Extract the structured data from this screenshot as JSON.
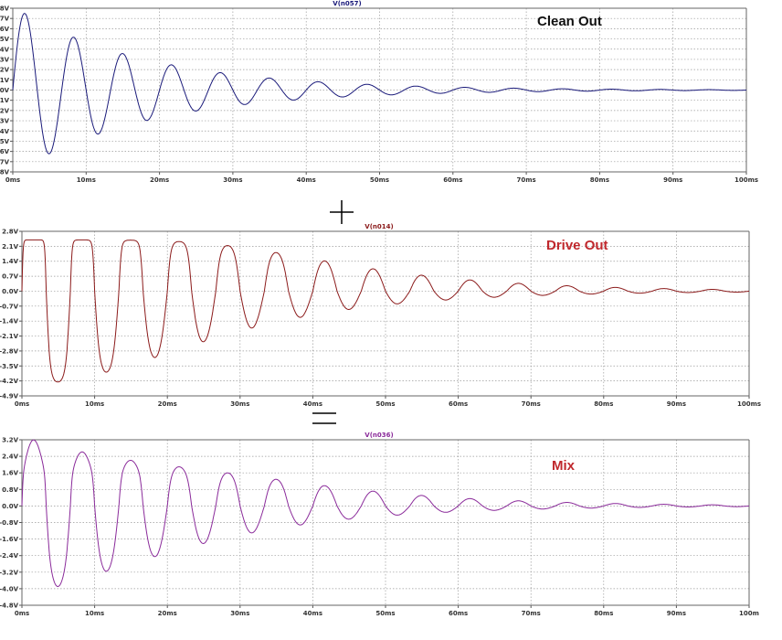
{
  "chart_data": [
    {
      "type": "line",
      "title": "V(n057)",
      "annotation": "Clean Out",
      "trace_color": "#1a1a7a",
      "label_color": "#111111",
      "xlabel": "",
      "ylabel": "",
      "xlim": [
        0,
        100
      ],
      "ylim": [
        -8,
        8
      ],
      "x_ticks": [
        "0ms",
        "10ms",
        "20ms",
        "30ms",
        "40ms",
        "50ms",
        "60ms",
        "70ms",
        "80ms",
        "90ms",
        "100ms"
      ],
      "y_ticks": [
        "8V",
        "7V",
        "6V",
        "5V",
        "4V",
        "3V",
        "2V",
        "1V",
        "0V",
        "-1V",
        "-2V",
        "-3V",
        "-4V",
        "-5V",
        "-6V",
        "-7V",
        "-8V"
      ],
      "grid": true,
      "model": {
        "kind": "damped_sine",
        "amplitude_v": 8.2,
        "freq_hz": 150,
        "decay_ms": 18
      },
      "peaks": [
        {
          "t_ms": 1.7,
          "v": 7.5
        },
        {
          "t_ms": 5,
          "v": -7
        },
        {
          "t_ms": 8.3,
          "v": 5.2
        },
        {
          "t_ms": 11.5,
          "v": -4.8
        },
        {
          "t_ms": 15,
          "v": 3.6
        },
        {
          "t_ms": 18.3,
          "v": -3.4
        },
        {
          "t_ms": 21.5,
          "v": 2.5
        },
        {
          "t_ms": 28.2,
          "v": 1.7
        }
      ]
    },
    {
      "type": "line",
      "title": "V(n014)",
      "annotation": "Drive Out",
      "trace_color": "#8b1a1a",
      "label_color": "#c0282d",
      "xlabel": "",
      "ylabel": "",
      "xlim": [
        0,
        100
      ],
      "ylim": [
        -4.9,
        2.8
      ],
      "x_ticks": [
        "0ms",
        "10ms",
        "20ms",
        "30ms",
        "40ms",
        "50ms",
        "60ms",
        "70ms",
        "80ms",
        "90ms",
        "100ms"
      ],
      "y_ticks": [
        "2.8V",
        "2.1V",
        "1.4V",
        "0.7V",
        "0.0V",
        "-0.7V",
        "-1.4V",
        "-2.1V",
        "-2.8V",
        "-3.5V",
        "-4.2V",
        "-4.9V"
      ],
      "grid": true,
      "model": {
        "kind": "asymmetric_clip_of_clean",
        "pos_limit_v": 2.4,
        "pos_scale_v": 1.2,
        "neg_limit_v": -4.5,
        "neg_scale_v": 3.5
      },
      "peaks": [
        {
          "t_ms": 4,
          "v": -4.4
        },
        {
          "t_ms": 8,
          "v": 2.3
        },
        {
          "t_ms": 10.5,
          "v": -3.7
        },
        {
          "t_ms": 14,
          "v": 2.3
        },
        {
          "t_ms": 17,
          "v": -3.4
        }
      ]
    },
    {
      "type": "line",
      "title": "V(n036)",
      "annotation": "Mix",
      "trace_color": "#8a2a9a",
      "label_color": "#c0282d",
      "xlabel": "",
      "ylabel": "",
      "xlim": [
        0,
        100
      ],
      "ylim": [
        -4.8,
        3.2
      ],
      "x_ticks": [
        "0ms",
        "10ms",
        "20ms",
        "30ms",
        "40ms",
        "50ms",
        "60ms",
        "70ms",
        "80ms",
        "90ms",
        "100m"
      ],
      "y_ticks": [
        "3.2V",
        "2.4V",
        "1.6V",
        "0.8V",
        "0.0V",
        "-0.8V",
        "-1.6V",
        "-2.4V",
        "-3.2V",
        "-4.0V",
        "-4.8V"
      ],
      "grid": true,
      "model": {
        "kind": "weighted_sum",
        "clean_weight": 0.25,
        "drive_weight": 0.55
      },
      "peaks": [
        {
          "t_ms": 1.8,
          "v": 3.1
        },
        {
          "t_ms": 5,
          "v": -4.4
        },
        {
          "t_ms": 8.5,
          "v": 2.9
        },
        {
          "t_ms": 11,
          "v": -3.5
        }
      ]
    }
  ],
  "operators": {
    "plus": "+",
    "equals": "="
  }
}
